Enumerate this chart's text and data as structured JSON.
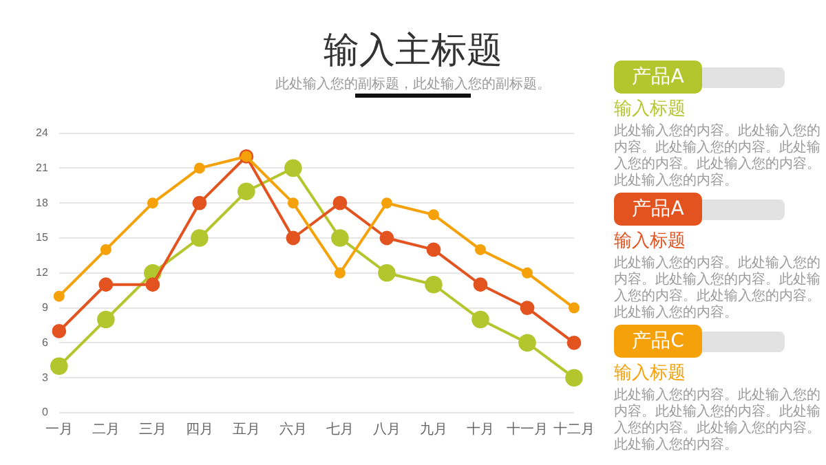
{
  "chart_data": {
    "type": "line",
    "title": "输入主标题",
    "subtitle": "此处输入您的副标题，此处输入您的副标题。",
    "categories": [
      "一月",
      "二月",
      "三月",
      "四月",
      "五月",
      "六月",
      "七月",
      "八月",
      "九月",
      "十月",
      "十一月",
      "十二月"
    ],
    "series": [
      {
        "name": "产品A",
        "color": "#b4c62e",
        "values": [
          4,
          8,
          12,
          15,
          19,
          21,
          15,
          12,
          11,
          8,
          6,
          3
        ]
      },
      {
        "name": "产品A",
        "color": "#e2531f",
        "values": [
          7,
          11,
          11,
          18,
          22,
          15,
          18,
          15,
          14,
          11,
          9,
          6
        ]
      },
      {
        "name": "产品C",
        "color": "#f5a20a",
        "values": [
          10,
          14,
          18,
          21,
          22,
          18,
          12,
          18,
          17,
          14,
          12,
          9
        ]
      }
    ],
    "ylim": [
      0,
      24
    ],
    "yticks": [
      0,
      3,
      6,
      9,
      12,
      15,
      18,
      21,
      24
    ],
    "grid": "y",
    "legend": "right",
    "marker": "circle",
    "line_style": "solid",
    "annotations": [
      "输入标题",
      "此处输入您的内容。此处输入您的内容。此处输入您的内容。此处输入您的内容。此处输入您的内容。此处输入您的内容。",
      "输入标题",
      "此处输入您的内容。此处输入您的内容。此处输入您的内容。此处输入您的内容。此处输入您的内容。此处输入您的内容。",
      "输入标题",
      "此处输入您的内容。此处输入您的内容。此处输入您的内容。此处输入您的内容。此处输入您的内容。此处输入您的内容。"
    ]
  }
}
